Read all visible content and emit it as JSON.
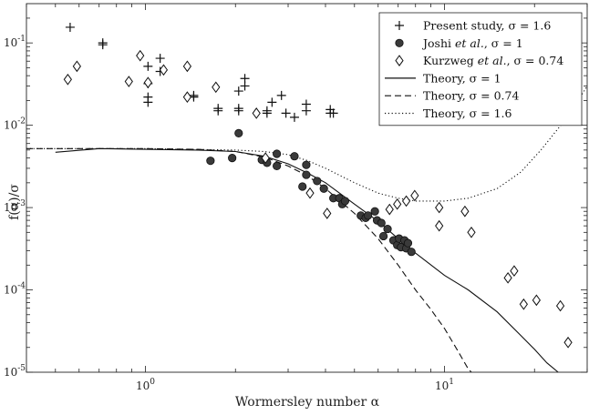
{
  "chart_data": {
    "type": "scatter",
    "xlabel": "Wormersley number α",
    "ylabel": "f(α)/σ",
    "xscale": "log",
    "yscale": "log",
    "xlim": [
      0.4,
      30
    ],
    "ylim": [
      1e-05,
      0.3
    ],
    "grid": false,
    "legend_position": "top-right",
    "x_ticks": [
      {
        "value": 1,
        "base": "10",
        "exp": "0"
      },
      {
        "value": 10,
        "base": "10",
        "exp": "1"
      }
    ],
    "y_ticks": [
      {
        "value": 0.1,
        "base": "10",
        "exp": "-1"
      },
      {
        "value": 0.01,
        "base": "10",
        "exp": "-2"
      },
      {
        "value": 0.001,
        "base": "10",
        "exp": "-3"
      },
      {
        "value": 0.0001,
        "base": "10",
        "exp": "-4"
      },
      {
        "value": 1e-05,
        "base": "10",
        "exp": "-5"
      }
    ],
    "series": [
      {
        "name": "Present study, σ = 1.6",
        "kind": "marker",
        "marker": "plus",
        "points": [
          [
            0.56,
            0.155
          ],
          [
            0.72,
            0.1
          ],
          [
            0.72,
            0.095
          ],
          [
            1.02,
            0.052
          ],
          [
            1.02,
            0.032
          ],
          [
            1.02,
            0.022
          ],
          [
            1.02,
            0.019
          ],
          [
            1.12,
            0.065
          ],
          [
            1.12,
            0.045
          ],
          [
            1.45,
            0.023
          ],
          [
            1.45,
            0.022
          ],
          [
            1.75,
            0.016
          ],
          [
            1.75,
            0.015
          ],
          [
            2.05,
            0.026
          ],
          [
            2.05,
            0.016
          ],
          [
            2.05,
            0.015
          ],
          [
            2.15,
            0.037
          ],
          [
            2.15,
            0.03
          ],
          [
            2.55,
            0.015
          ],
          [
            2.55,
            0.014
          ],
          [
            2.65,
            0.019
          ],
          [
            2.85,
            0.023
          ],
          [
            2.95,
            0.014
          ],
          [
            3.15,
            0.0125
          ],
          [
            3.45,
            0.018
          ],
          [
            3.45,
            0.015
          ],
          [
            4.15,
            0.0155
          ],
          [
            4.15,
            0.014
          ],
          [
            4.25,
            0.014
          ]
        ]
      },
      {
        "name": "Joshi et al., σ = 1",
        "kind": "marker",
        "marker": "filled-circle",
        "points": [
          [
            1.65,
            0.0037
          ],
          [
            1.95,
            0.004
          ],
          [
            2.05,
            0.008
          ],
          [
            2.45,
            0.0038
          ],
          [
            2.55,
            0.0035
          ],
          [
            2.75,
            0.0045
          ],
          [
            2.75,
            0.0032
          ],
          [
            3.15,
            0.0042
          ],
          [
            3.45,
            0.0033
          ],
          [
            3.45,
            0.0025
          ],
          [
            3.35,
            0.0018
          ],
          [
            3.75,
            0.0021
          ],
          [
            3.95,
            0.0017
          ],
          [
            4.25,
            0.0013
          ],
          [
            4.45,
            0.0013
          ],
          [
            4.55,
            0.0011
          ],
          [
            4.65,
            0.0012
          ],
          [
            5.25,
            0.0008
          ],
          [
            5.45,
            0.00075
          ],
          [
            5.55,
            0.0008
          ],
          [
            5.85,
            0.0009
          ],
          [
            5.95,
            0.0007
          ],
          [
            6.15,
            0.00065
          ],
          [
            6.25,
            0.00045
          ],
          [
            6.45,
            0.00055
          ],
          [
            6.75,
            0.0004
          ],
          [
            6.95,
            0.00035
          ],
          [
            7.05,
            0.00042
          ],
          [
            7.15,
            0.00033
          ],
          [
            7.35,
            0.0004
          ],
          [
            7.45,
            0.00032
          ],
          [
            7.55,
            0.00037
          ],
          [
            7.75,
            0.00029
          ]
        ]
      },
      {
        "name": "Kurzweg et al., σ = 0.74",
        "kind": "marker",
        "marker": "open-diamond",
        "points": [
          [
            0.55,
            0.036
          ],
          [
            0.59,
            0.052
          ],
          [
            0.88,
            0.034
          ],
          [
            0.96,
            0.07
          ],
          [
            1.02,
            0.033
          ],
          [
            1.15,
            0.047
          ],
          [
            1.38,
            0.052
          ],
          [
            1.38,
            0.022
          ],
          [
            1.72,
            0.029
          ],
          [
            2.35,
            0.014
          ],
          [
            2.52,
            0.004
          ],
          [
            3.55,
            0.0015
          ],
          [
            4.05,
            0.00085
          ],
          [
            6.55,
            0.00095
          ],
          [
            6.95,
            0.0011
          ],
          [
            7.45,
            0.0012
          ],
          [
            7.95,
            0.0014
          ],
          [
            9.6,
            0.001
          ],
          [
            9.6,
            0.0006
          ],
          [
            11.7,
            0.0009
          ],
          [
            12.3,
            0.0005
          ],
          [
            16.3,
            0.00014
          ],
          [
            17.1,
            0.00017
          ],
          [
            18.4,
            6.7e-05
          ],
          [
            20.3,
            7.5e-05
          ],
          [
            24.4,
            6.4e-05
          ],
          [
            25.9,
            2.3e-05
          ]
        ]
      },
      {
        "name": "Theory, σ = 1",
        "kind": "line",
        "dash": "solid",
        "points": [
          [
            0.5,
            0.0047
          ],
          [
            0.7,
            0.0052
          ],
          [
            1.0,
            0.0051
          ],
          [
            1.5,
            0.005
          ],
          [
            2.0,
            0.0048
          ],
          [
            2.5,
            0.0042
          ],
          [
            3.0,
            0.0034
          ],
          [
            3.5,
            0.0026
          ],
          [
            4.0,
            0.002
          ],
          [
            5.0,
            0.0011
          ],
          [
            6.0,
            0.00068
          ],
          [
            7.0,
            0.00042
          ],
          [
            8.0,
            0.00028
          ],
          [
            10.0,
            0.00015
          ],
          [
            12.0,
            0.0001
          ],
          [
            15.0,
            5.4e-05
          ],
          [
            18.0,
            2.8e-05
          ],
          [
            20.0,
            1.9e-05
          ],
          [
            22.0,
            1.3e-05
          ],
          [
            24.0,
            1e-05
          ]
        ]
      },
      {
        "name": "Theory, σ = 0.74",
        "kind": "line",
        "dash": "dashed",
        "points": [
          [
            0.4,
            0.0052
          ],
          [
            0.6,
            0.0052
          ],
          [
            1.0,
            0.0052
          ],
          [
            1.5,
            0.0051
          ],
          [
            2.0,
            0.0048
          ],
          [
            2.5,
            0.0041
          ],
          [
            3.0,
            0.0032
          ],
          [
            3.5,
            0.0024
          ],
          [
            4.0,
            0.0017
          ],
          [
            5.0,
            0.00085
          ],
          [
            6.0,
            0.00042
          ],
          [
            7.0,
            0.0002
          ],
          [
            8.0,
            0.0001
          ],
          [
            9.0,
            5.8e-05
          ],
          [
            10.0,
            3.4e-05
          ],
          [
            11.0,
            1.9e-05
          ],
          [
            12.0,
            1.1e-05
          ],
          [
            12.3,
            1e-05
          ]
        ]
      },
      {
        "name": "Theory, σ = 1.6",
        "kind": "line",
        "dash": "dotted",
        "points": [
          [
            0.4,
            0.0052
          ],
          [
            1.0,
            0.0052
          ],
          [
            2.0,
            0.005
          ],
          [
            2.5,
            0.0048
          ],
          [
            3.0,
            0.0044
          ],
          [
            3.5,
            0.0037
          ],
          [
            4.0,
            0.003
          ],
          [
            5.0,
            0.002
          ],
          [
            6.0,
            0.0015
          ],
          [
            7.0,
            0.0013
          ],
          [
            8.0,
            0.0012
          ],
          [
            10.0,
            0.0012
          ],
          [
            12.0,
            0.0013
          ],
          [
            15.0,
            0.0017
          ],
          [
            18.0,
            0.0027
          ],
          [
            21.0,
            0.005
          ],
          [
            25.0,
            0.011
          ],
          [
            28.0,
            0.02
          ],
          [
            30.0,
            0.03
          ]
        ]
      }
    ]
  }
}
